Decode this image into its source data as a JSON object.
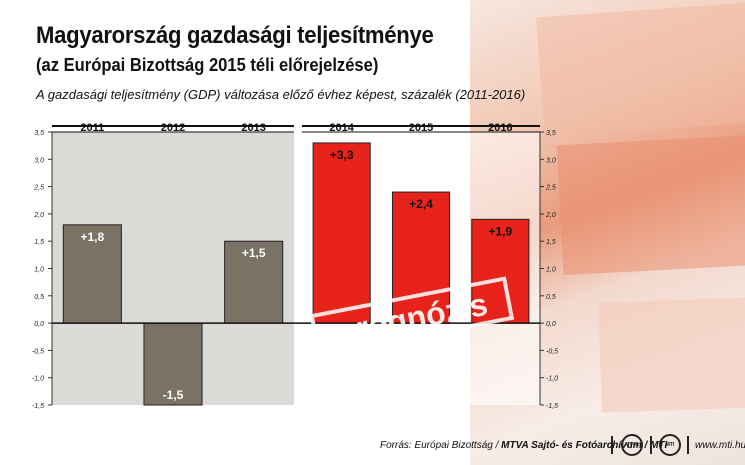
{
  "header": {
    "title": "Magyarország gazdasági teljesítménye",
    "subtitle": "(az Európai Bizottság 2015 téli előrejelzése)",
    "description": "A gazdasági teljesítmény (GDP) változása előző évhez képest, százalék (2011-2016)"
  },
  "footer": {
    "source_prefix": "Forrás: Európai Bizottság / ",
    "source_bold": "MTVA Sajtó- és Fotóarchívum / MTI",
    "url": "www.mti.hu",
    "logo1": "MTVA",
    "logo2": "MTI"
  },
  "chart_data": {
    "type": "bar",
    "categories": [
      "2011",
      "2012",
      "2013",
      "2014",
      "2015",
      "2016"
    ],
    "values": [
      1.8,
      -1.5,
      1.5,
      3.3,
      2.4,
      1.9
    ],
    "data_labels": [
      "+1,8",
      "-1,5",
      "+1,5",
      "+3,3",
      "+2,4",
      "+1,9"
    ],
    "forecast": [
      false,
      false,
      false,
      true,
      true,
      true
    ],
    "forecast_label": "prognózis",
    "ylim": [
      -1.5,
      3.5
    ],
    "yticks": [
      3.5,
      3.0,
      2.5,
      2.0,
      1.5,
      1.0,
      0.5,
      0.0,
      -0.5,
      -1.0,
      -1.5
    ],
    "ytick_labels": [
      "3,5",
      "3,0",
      "2,5",
      "2,0",
      "1,5",
      "1,0",
      "0,5",
      "0,0",
      "-0,5",
      "-1,0",
      "-1,5"
    ],
    "colors": {
      "actual": "#7a7264",
      "forecast": "#e8231c",
      "actual_bg": "#dcdad6",
      "forecast_bg": "#ffffff"
    }
  }
}
